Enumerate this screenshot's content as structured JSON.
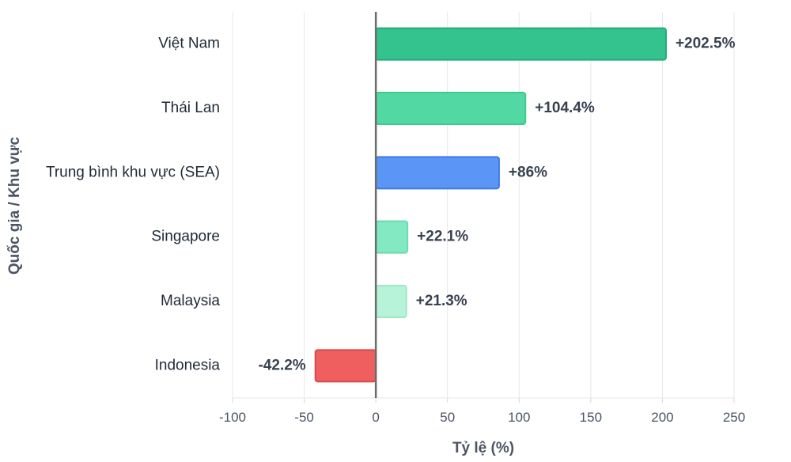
{
  "chart_data": {
    "type": "bar",
    "orientation": "horizontal",
    "categories": [
      "Việt Nam",
      "Thái Lan",
      "Trung bình khu vực (SEA)",
      "Singapore",
      "Malaysia",
      "Indonesia"
    ],
    "values": [
      202.5,
      104.4,
      86,
      22.1,
      21.3,
      -42.2
    ],
    "data_labels": [
      "+202.5%",
      "+104.4%",
      "+86%",
      "+22.1%",
      "+21.3%",
      "-42.2%"
    ],
    "colors": [
      "#34c38f",
      "#52d9a3",
      "#5b96f7",
      "#83e9c2",
      "#b7f3d9",
      "#ef5f5f"
    ],
    "border_colors": [
      "#1fae78",
      "#3dca90",
      "#3f7be6",
      "#6adcae",
      "#9ee8c6",
      "#d94a4a"
    ],
    "xlabel": "Tỷ lệ (%)",
    "ylabel": "Quốc gia / Khu vực",
    "xlim": [
      -100,
      250
    ],
    "xticks": [
      -100,
      -50,
      0,
      50,
      100,
      150,
      200,
      250
    ],
    "tick_labels": [
      "-100",
      "-50",
      "0",
      "50",
      "100",
      "150",
      "200",
      "250"
    ],
    "grid": "vertical",
    "zero_line_color": "#6b6b6b",
    "grid_color": "#e5e7eb"
  }
}
